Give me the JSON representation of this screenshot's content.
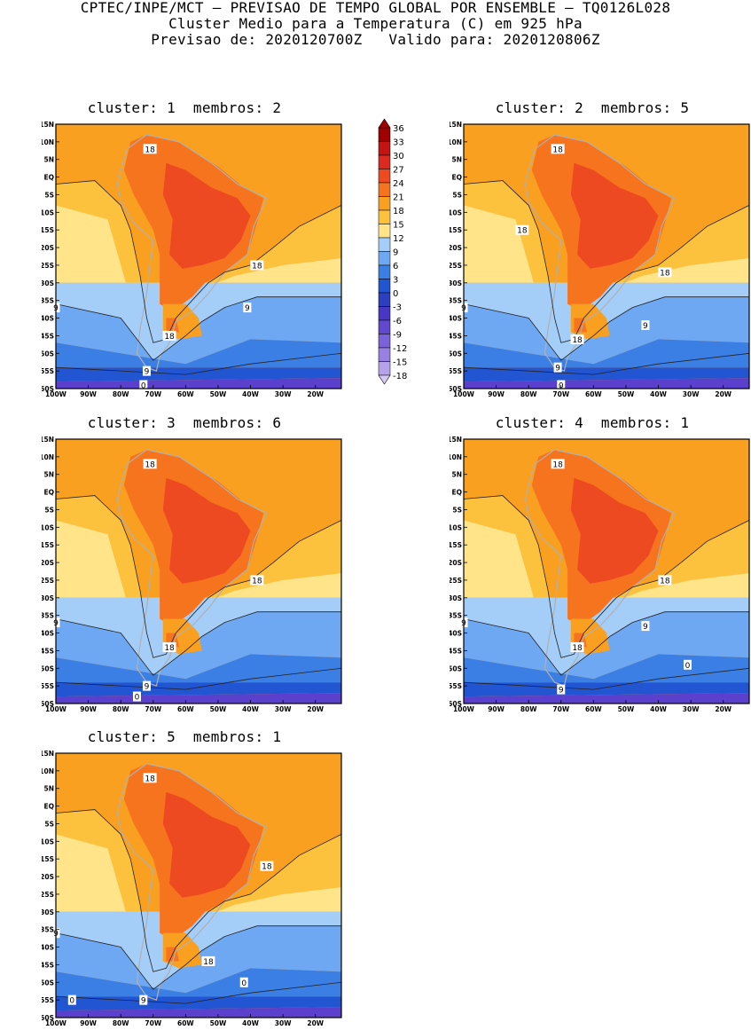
{
  "header": {
    "line1": "CPTEC/INPE/MCT – PREVISAO DE TEMPO GLOBAL POR ENSEMBLE – TQ0126L028",
    "line2": "Cluster Medio para a Temperatura (C) em 925 hPa",
    "line3": "Previsao de: 2020120700Z   Valido para: 2020120806Z"
  },
  "panels": [
    {
      "title": "cluster: 1  membros: 2",
      "labels": [
        "18",
        "18",
        "9",
        "9",
        "18",
        "9",
        "0"
      ]
    },
    {
      "title": "cluster: 2  membros: 5",
      "labels": [
        "18",
        "18",
        "18",
        "9",
        "9",
        "18",
        "9",
        "0"
      ]
    },
    {
      "title": "cluster: 3  membros: 6",
      "labels": [
        "18",
        "18",
        "9",
        "18",
        "9",
        "0"
      ]
    },
    {
      "title": "cluster: 4  membros: 1",
      "labels": [
        "18",
        "18",
        "9",
        "9",
        "18",
        "9",
        "0"
      ]
    },
    {
      "title": "cluster: 5  membros: 1",
      "labels": [
        "18",
        "18",
        "9",
        "18",
        "0",
        "9",
        "0"
      ]
    }
  ],
  "axes": {
    "lat_ticks": [
      "15N",
      "10N",
      "5N",
      "EQ",
      "5S",
      "10S",
      "15S",
      "20S",
      "25S",
      "30S",
      "35S",
      "40S",
      "45S",
      "50S",
      "55S",
      "60S"
    ],
    "lon_ticks": [
      "100W",
      "90W",
      "80W",
      "70W",
      "60W",
      "50W",
      "40W",
      "30W",
      "20W"
    ]
  },
  "legend": {
    "values": [
      "36",
      "33",
      "30",
      "27",
      "24",
      "21",
      "18",
      "15",
      "12",
      "9",
      "6",
      "3",
      "0",
      "-3",
      "-6",
      "-9",
      "-12",
      "-15",
      "-18"
    ],
    "colors": [
      "#a00000",
      "#c41414",
      "#dc2a20",
      "#ee4a22",
      "#f7741e",
      "#f9a021",
      "#fcc13d",
      "#ffe48a",
      "#a4cdf8",
      "#6fa8f2",
      "#3c7fe4",
      "#2255d2",
      "#2b3fc0",
      "#4a36c4",
      "#6148ce",
      "#7a62d8",
      "#9880e2",
      "#b6a2ea",
      "#d6c8f4"
    ]
  },
  "chart_data": {
    "type": "heatmap",
    "title": "Cluster Medio para a Temperatura (C) em 925 hPa",
    "variable": "temperature 925 hPa (C)",
    "lat_range": [
      -60,
      15
    ],
    "lon_range": [
      -100,
      -12
    ],
    "contour_levels_labeled": [
      18,
      9,
      0
    ],
    "colorbar": [
      -18,
      -15,
      -12,
      -9,
      -6,
      -3,
      0,
      3,
      6,
      9,
      12,
      15,
      18,
      21,
      24,
      27,
      30,
      33,
      36
    ],
    "panels": [
      {
        "cluster": 1,
        "membros": 2
      },
      {
        "cluster": 2,
        "membros": 5
      },
      {
        "cluster": 3,
        "membros": 6
      },
      {
        "cluster": 4,
        "membros": 1
      },
      {
        "cluster": 5,
        "membros": 1
      }
    ]
  }
}
